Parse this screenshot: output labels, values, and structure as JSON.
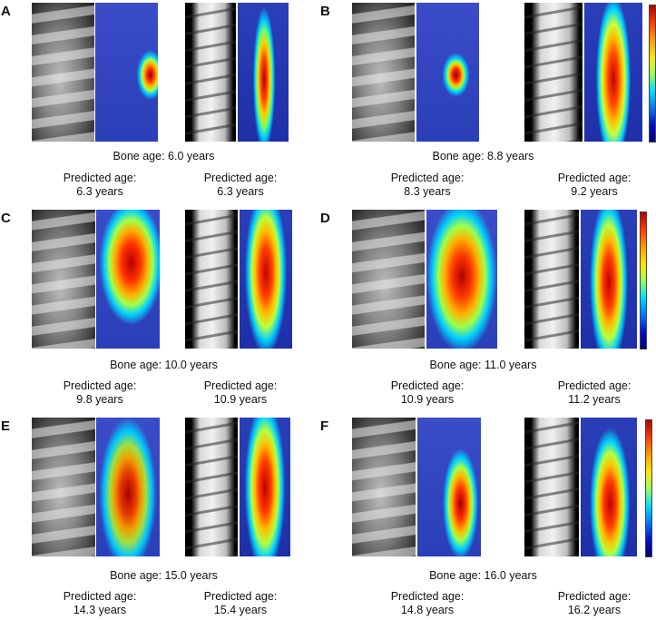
{
  "panels": [
    {
      "letter": "A",
      "bone_age": "Bone age: 6.0 years",
      "pred_left_label": "Predicted age:",
      "pred_left_value": "6.3 years",
      "pred_right_label": "Predicted age:",
      "pred_right_value": "6.3 years"
    },
    {
      "letter": "B",
      "bone_age": "Bone age: 8.8 years",
      "pred_left_label": "Predicted age:",
      "pred_left_value": "8.3 years",
      "pred_right_label": "Predicted age:",
      "pred_right_value": "9.2 years"
    },
    {
      "letter": "C",
      "bone_age": "Bone age: 10.0 years",
      "pred_left_label": "Predicted age:",
      "pred_left_value": "9.8 years",
      "pred_right_label": "Predicted age:",
      "pred_right_value": "10.9 years"
    },
    {
      "letter": "D",
      "bone_age": "Bone age: 11.0 years",
      "pred_left_label": "Predicted age:",
      "pred_left_value": "10.9 years",
      "pred_right_label": "Predicted age:",
      "pred_right_value": "11.2 years"
    },
    {
      "letter": "E",
      "bone_age": "Bone age: 15.0 years",
      "pred_left_label": "Predicted age:",
      "pred_left_value": "14.3 years",
      "pred_right_label": "Predicted age:",
      "pred_right_value": "15.4 years"
    },
    {
      "letter": "F",
      "bone_age": "Bone age: 16.0 years",
      "pred_left_label": "Predicted age:",
      "pred_left_value": "14.8 years",
      "pred_right_label": "Predicted age:",
      "pred_right_value": "16.2 years"
    }
  ],
  "colors": {
    "heat_base": "#2a3fb8",
    "heat_hot": "#c40000"
  }
}
